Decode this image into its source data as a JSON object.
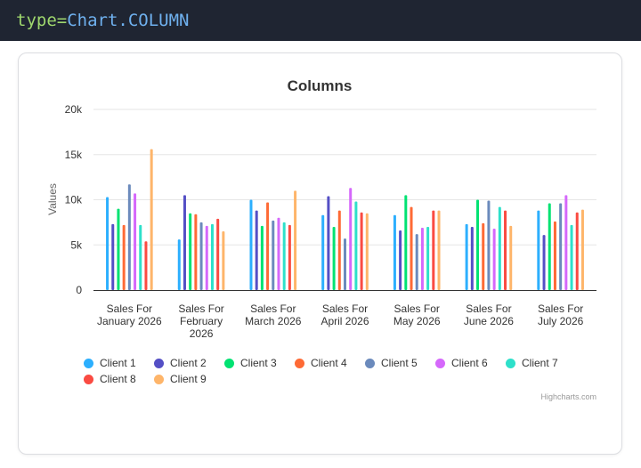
{
  "code_line": {
    "keyword": "type=",
    "value": "Chart.COLUMN"
  },
  "credits": "Highcharts.com",
  "chart_data": {
    "type": "bar",
    "title": "Columns",
    "ylabel": "Values",
    "xlabel": "",
    "ylim": [
      0,
      20000
    ],
    "yticks": [
      0,
      5000,
      10000,
      15000,
      20000
    ],
    "ytick_labels": [
      "0",
      "5k",
      "10k",
      "15k",
      "20k"
    ],
    "grid": true,
    "legend_position": "bottom",
    "categories": [
      [
        "Sales For",
        "January 2026"
      ],
      [
        "Sales For",
        "February",
        "2026"
      ],
      [
        "Sales For",
        "March 2026"
      ],
      [
        "Sales For",
        "April 2026"
      ],
      [
        "Sales For",
        "May 2026"
      ],
      [
        "Sales For",
        "June 2026"
      ],
      [
        "Sales For",
        "July 2026"
      ]
    ],
    "series": [
      {
        "name": "Client 1",
        "color": "#2caffe",
        "values": [
          10300,
          5600,
          10000,
          8300,
          8300,
          7300,
          8800
        ]
      },
      {
        "name": "Client 2",
        "color": "#544fc5",
        "values": [
          7300,
          10500,
          8800,
          10400,
          6600,
          7000,
          6100
        ]
      },
      {
        "name": "Client 3",
        "color": "#00e272",
        "values": [
          9000,
          8500,
          7100,
          7000,
          10500,
          10000,
          9600
        ]
      },
      {
        "name": "Client 4",
        "color": "#fe6a35",
        "values": [
          7200,
          8400,
          9700,
          8800,
          9200,
          7400,
          7600
        ]
      },
      {
        "name": "Client 5",
        "color": "#6b8abc",
        "values": [
          11700,
          7500,
          7700,
          5700,
          6200,
          9900,
          9600
        ]
      },
      {
        "name": "Client 6",
        "color": "#d568fb",
        "values": [
          10700,
          7100,
          8000,
          11300,
          6900,
          6800,
          10500
        ]
      },
      {
        "name": "Client 7",
        "color": "#2ee0ca",
        "values": [
          7200,
          7300,
          7500,
          9800,
          7000,
          9200,
          7200
        ]
      },
      {
        "name": "Client 8",
        "color": "#fa4b42",
        "values": [
          5400,
          7900,
          7200,
          8600,
          8800,
          8800,
          8600
        ]
      },
      {
        "name": "Client 9",
        "color": "#feb56a",
        "values": [
          15600,
          6500,
          11000,
          8500,
          8800,
          7100,
          8900
        ]
      }
    ]
  }
}
